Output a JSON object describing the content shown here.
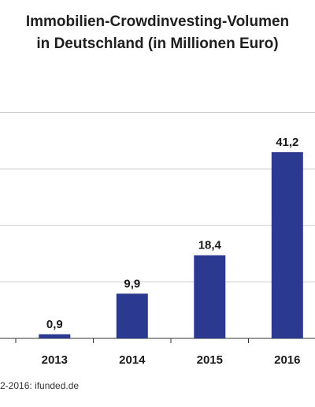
{
  "title_line1": "Immobilien-Crowdinvesting-Volumen",
  "title_line2": "in Deutschland (in Millionen Euro)",
  "source": "2-2016: ifunded.de",
  "colors": {
    "bar": "#2b3990",
    "grid": "#cccccc",
    "axis": "#333333"
  },
  "chart_data": {
    "type": "bar",
    "title": "Immobilien-Crowdinvesting-Volumen in Deutschland (in Millionen Euro)",
    "categories": [
      "2013",
      "2014",
      "2015",
      "2016"
    ],
    "values": [
      0.9,
      9.9,
      18.4,
      41.2
    ],
    "value_labels": [
      "0,9",
      "9,9",
      "18,4",
      "41,2"
    ],
    "ylim": [
      0,
      100
    ],
    "y_grid_step": 12.5,
    "grid": true,
    "legend": "none"
  }
}
